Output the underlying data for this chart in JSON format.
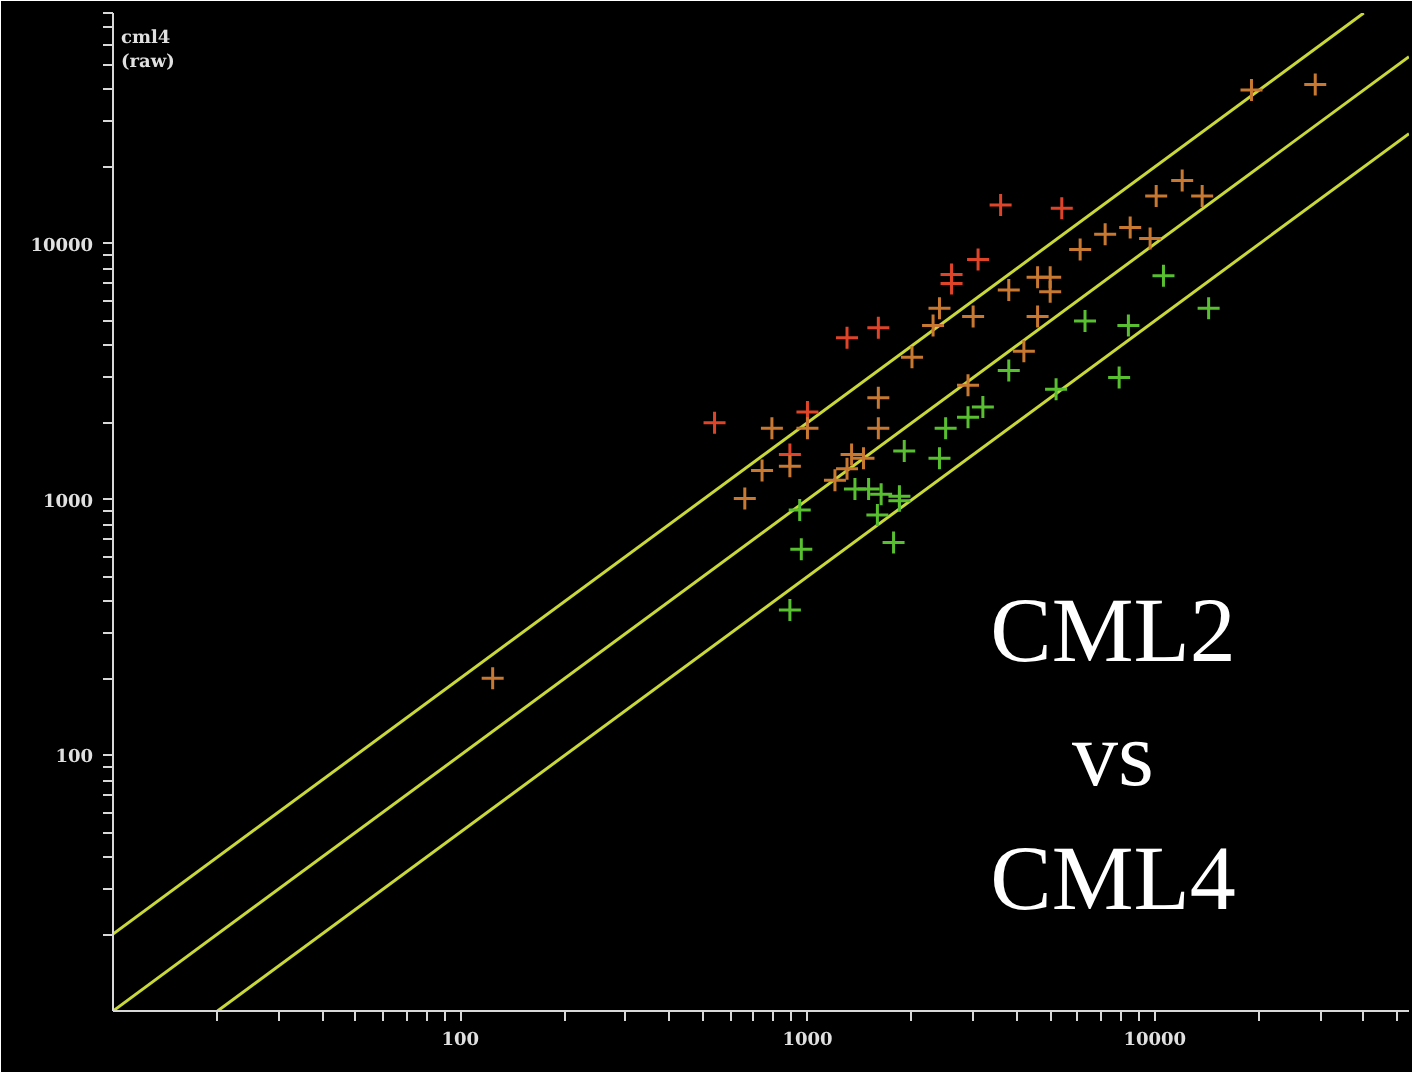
{
  "chart_data": {
    "type": "scatter",
    "ylabel": "cml4 (raw)",
    "log": "xy",
    "grid": false,
    "marker": "cross",
    "xlim": [
      10,
      54000
    ],
    "ylim": [
      10,
      80000
    ],
    "xticks": [
      {
        "value": 20,
        "label": null
      },
      {
        "value": 30,
        "label": null
      },
      {
        "value": 40,
        "label": null
      },
      {
        "value": 50,
        "label": null
      },
      {
        "value": 60,
        "label": null
      },
      {
        "value": 70,
        "label": null
      },
      {
        "value": 80,
        "label": null
      },
      {
        "value": 90,
        "label": null
      },
      100,
      {
        "value": 200,
        "label": null
      },
      {
        "value": 300,
        "label": null
      },
      {
        "value": 400,
        "label": null
      },
      {
        "value": 500,
        "label": null
      },
      {
        "value": 600,
        "label": null
      },
      {
        "value": 700,
        "label": null
      },
      {
        "value": 800,
        "label": null
      },
      {
        "value": 900,
        "label": null
      },
      1000,
      {
        "value": 2000,
        "label": null
      },
      {
        "value": 3000,
        "label": null
      },
      {
        "value": 4000,
        "label": null
      },
      {
        "value": 5000,
        "label": null
      },
      {
        "value": 6000,
        "label": null
      },
      {
        "value": 7000,
        "label": null
      },
      {
        "value": 8000,
        "label": null
      },
      {
        "value": 9000,
        "label": null
      },
      10000,
      {
        "value": 20000,
        "label": null
      },
      {
        "value": 30000,
        "label": null
      },
      {
        "value": 40000,
        "label": null
      },
      {
        "value": 50000,
        "label": null
      }
    ],
    "yticks": [
      {
        "value": 20,
        "label": null
      },
      {
        "value": 30,
        "label": null
      },
      {
        "value": 40,
        "label": null
      },
      {
        "value": 50,
        "label": null
      },
      {
        "value": 60,
        "label": null
      },
      {
        "value": 70,
        "label": null
      },
      {
        "value": 80,
        "label": null
      },
      {
        "value": 90,
        "label": null
      },
      100,
      {
        "value": 200,
        "label": null
      },
      {
        "value": 300,
        "label": null
      },
      {
        "value": 400,
        "label": null
      },
      {
        "value": 500,
        "label": null
      },
      {
        "value": 600,
        "label": null
      },
      {
        "value": 700,
        "label": null
      },
      {
        "value": 800,
        "label": null
      },
      {
        "value": 900,
        "label": null
      },
      1000,
      {
        "value": 2000,
        "label": null
      },
      {
        "value": 3000,
        "label": null
      },
      {
        "value": 4000,
        "label": null
      },
      {
        "value": 5000,
        "label": null
      },
      {
        "value": 6000,
        "label": null
      },
      {
        "value": 7000,
        "label": null
      },
      {
        "value": 8000,
        "label": null
      },
      {
        "value": 9000,
        "label": null
      },
      10000,
      {
        "value": 20000,
        "label": null
      },
      {
        "value": 30000,
        "label": null
      },
      {
        "value": 40000,
        "label": null
      },
      {
        "value": 50000,
        "label": null
      },
      {
        "value": 60000,
        "label": null
      },
      {
        "value": 70000,
        "label": null
      },
      {
        "value": 80000,
        "label": null
      }
    ],
    "annotations": [
      "CML2",
      "vs",
      "CML4"
    ],
    "series": [
      {
        "type": "line",
        "marker": "none",
        "color": "#c8d838",
        "x": [
          10,
          40000
        ],
        "values": [
          20,
          80000
        ]
      },
      {
        "type": "line",
        "marker": "none",
        "color": "#c8d838",
        "x": [
          10,
          54000
        ],
        "values": [
          10,
          54000
        ]
      },
      {
        "type": "line",
        "marker": "none",
        "color": "#c8d838",
        "x": [
          20,
          54000
        ],
        "values": [
          10,
          27000
        ]
      },
      {
        "color": "#e04428",
        "x": [
          3600,
          5400,
          3100,
          2600,
          2600,
          1600,
          1300,
          540,
          1000,
          890
        ],
        "values": [
          14200,
          13800,
          8700,
          7600,
          7000,
          4700,
          4300,
          2000,
          2200,
          1500
        ]
      },
      {
        "color": "#c87830",
        "x": [
          19000,
          29000,
          12000,
          10100,
          13700,
          7200,
          8500,
          9700,
          6100,
          3800,
          4600,
          5000,
          5000,
          2400,
          3000,
          2300,
          4600,
          2000,
          4200,
          2900,
          1600,
          1600,
          790,
          1000,
          890,
          740,
          1340,
          1450,
          1300,
          1200,
          660,
          124
        ],
        "values": [
          40000,
          42000,
          17700,
          15400,
          15400,
          10900,
          11600,
          10500,
          9500,
          6600,
          7400,
          7400,
          6500,
          5600,
          5200,
          4800,
          5200,
          3600,
          3800,
          2800,
          2500,
          1900,
          1900,
          1900,
          1350,
          1300,
          1500,
          1450,
          1320,
          1190,
          1010,
          200
        ]
      },
      {
        "color": "#58c030",
        "x": [
          10600,
          6300,
          8400,
          14300,
          3800,
          7900,
          5200,
          3200,
          2900,
          2500,
          1900,
          2400,
          1370,
          1500,
          1630,
          1840,
          950,
          1590,
          1840,
          960,
          1770,
          890
        ],
        "values": [
          7500,
          5000,
          4800,
          5600,
          3200,
          3000,
          2700,
          2300,
          2100,
          1900,
          1550,
          1450,
          1100,
          1100,
          1050,
          1030,
          910,
          870,
          990,
          640,
          680,
          370
        ]
      }
    ]
  }
}
